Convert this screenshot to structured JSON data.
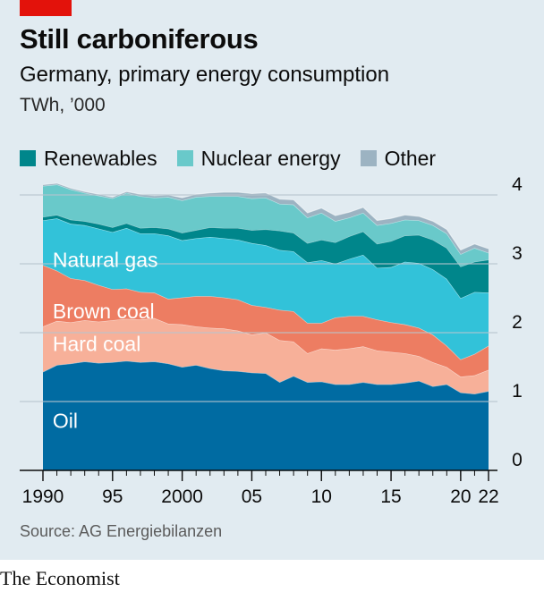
{
  "header": {
    "title": "Still carboniferous",
    "subtitle": "Germany, primary energy consumption",
    "unit": "TWh, ’000"
  },
  "footer": {
    "source": "Source: AG Energiebilanzen",
    "brand": "The Economist"
  },
  "colors": {
    "accent": "#e3120b",
    "background": "#e1ebf1"
  },
  "chart_data": {
    "type": "area",
    "stacked": true,
    "x": [
      1990,
      1991,
      1992,
      1993,
      1994,
      1995,
      1996,
      1997,
      1998,
      1999,
      2000,
      2001,
      2002,
      2003,
      2004,
      2005,
      2006,
      2007,
      2008,
      2009,
      2010,
      2011,
      2012,
      2013,
      2014,
      2015,
      2016,
      2017,
      2018,
      2019,
      2020,
      2021,
      2022
    ],
    "x_tick_labels": [
      {
        "x": 1990,
        "label": "1990"
      },
      {
        "x": 1995,
        "label": "95"
      },
      {
        "x": 2000,
        "label": "2000"
      },
      {
        "x": 2005,
        "label": "05"
      },
      {
        "x": 2010,
        "label": "10"
      },
      {
        "x": 2015,
        "label": "15"
      },
      {
        "x": 2020,
        "label": "20"
      },
      {
        "x": 2022,
        "label": "22"
      }
    ],
    "y_ticks": [
      0,
      1,
      2,
      3,
      4
    ],
    "ylim": [
      0,
      4.25
    ],
    "xlim": [
      1990,
      2022
    ],
    "grid": true,
    "series": [
      {
        "name": "Oil",
        "color": "#006ba2",
        "label_color": "#ffffff",
        "label_x": 1990.7,
        "label_y": 0.72,
        "values": [
          1.43,
          1.53,
          1.55,
          1.58,
          1.56,
          1.57,
          1.59,
          1.57,
          1.58,
          1.55,
          1.5,
          1.53,
          1.48,
          1.45,
          1.44,
          1.42,
          1.41,
          1.28,
          1.37,
          1.28,
          1.29,
          1.25,
          1.25,
          1.28,
          1.25,
          1.25,
          1.27,
          1.3,
          1.22,
          1.25,
          1.13,
          1.11,
          1.15
        ]
      },
      {
        "name": "Hard coal",
        "color": "#f7b099",
        "label_color": "#ffffff",
        "label_x": 1990.7,
        "label_y": 1.84,
        "values": [
          0.66,
          0.64,
          0.6,
          0.6,
          0.6,
          0.61,
          0.61,
          0.62,
          0.63,
          0.58,
          0.62,
          0.56,
          0.59,
          0.61,
          0.59,
          0.55,
          0.59,
          0.61,
          0.5,
          0.42,
          0.48,
          0.5,
          0.52,
          0.52,
          0.49,
          0.47,
          0.43,
          0.36,
          0.35,
          0.25,
          0.23,
          0.27,
          0.31
        ]
      },
      {
        "name": "Brown coal",
        "color": "#ed7d62",
        "label_color": "#ffffff",
        "label_x": 1990.7,
        "label_y": 2.31,
        "values": [
          0.89,
          0.73,
          0.64,
          0.58,
          0.53,
          0.45,
          0.44,
          0.4,
          0.37,
          0.36,
          0.39,
          0.44,
          0.46,
          0.45,
          0.45,
          0.43,
          0.37,
          0.44,
          0.44,
          0.44,
          0.37,
          0.47,
          0.47,
          0.44,
          0.45,
          0.43,
          0.42,
          0.41,
          0.4,
          0.31,
          0.25,
          0.31,
          0.35
        ]
      },
      {
        "name": "Natural gas",
        "color": "#32c2d9",
        "label_color": "#ffffff",
        "label_x": 1990.7,
        "label_y": 3.06,
        "values": [
          0.65,
          0.76,
          0.79,
          0.8,
          0.82,
          0.83,
          0.88,
          0.85,
          0.86,
          0.92,
          0.83,
          0.84,
          0.86,
          0.86,
          0.87,
          0.9,
          0.9,
          0.87,
          0.87,
          0.88,
          0.91,
          0.78,
          0.83,
          0.89,
          0.75,
          0.8,
          0.91,
          0.94,
          0.95,
          0.97,
          0.89,
          0.9,
          0.77
        ]
      },
      {
        "name": "Renewables",
        "color": "#00868b",
        "label_color": null,
        "values": [
          0.05,
          0.05,
          0.06,
          0.06,
          0.07,
          0.07,
          0.07,
          0.08,
          0.09,
          0.1,
          0.11,
          0.12,
          0.14,
          0.15,
          0.17,
          0.19,
          0.23,
          0.28,
          0.27,
          0.28,
          0.3,
          0.31,
          0.33,
          0.34,
          0.35,
          0.38,
          0.38,
          0.41,
          0.43,
          0.45,
          0.46,
          0.44,
          0.48
        ]
      },
      {
        "name": "Nuclear energy",
        "color": "#69c9ca",
        "label_color": null,
        "values": [
          0.45,
          0.44,
          0.44,
          0.41,
          0.41,
          0.42,
          0.44,
          0.46,
          0.43,
          0.46,
          0.47,
          0.48,
          0.45,
          0.46,
          0.46,
          0.46,
          0.46,
          0.39,
          0.41,
          0.37,
          0.39,
          0.31,
          0.27,
          0.27,
          0.27,
          0.26,
          0.23,
          0.21,
          0.21,
          0.21,
          0.18,
          0.2,
          0.1
        ]
      },
      {
        "name": "Other",
        "color": "#9cb3c2",
        "label_color": null,
        "values": [
          0.02,
          0.02,
          0.02,
          0.02,
          0.02,
          0.02,
          0.02,
          0.03,
          0.03,
          0.03,
          0.04,
          0.04,
          0.05,
          0.06,
          0.06,
          0.07,
          0.07,
          0.07,
          0.07,
          0.07,
          0.07,
          0.08,
          0.08,
          0.08,
          0.07,
          0.07,
          0.07,
          0.06,
          0.06,
          0.06,
          0.06,
          0.06,
          0.06
        ]
      }
    ],
    "legend": [
      "Renewables",
      "Nuclear energy",
      "Other"
    ],
    "legend_placement": "top-left"
  }
}
